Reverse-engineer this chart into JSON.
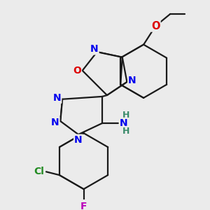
{
  "bg_color": "#ebebeb",
  "bond_color": "#1a1a1a",
  "bond_width": 1.6,
  "dbo": 0.012,
  "atom_colors": {
    "N": "#0000ee",
    "O": "#dd0000",
    "Cl": "#228B22",
    "F": "#bb00bb",
    "NH2_N": "#0000ee",
    "NH2_H": "#3a8a6a"
  },
  "fs": 10.5
}
